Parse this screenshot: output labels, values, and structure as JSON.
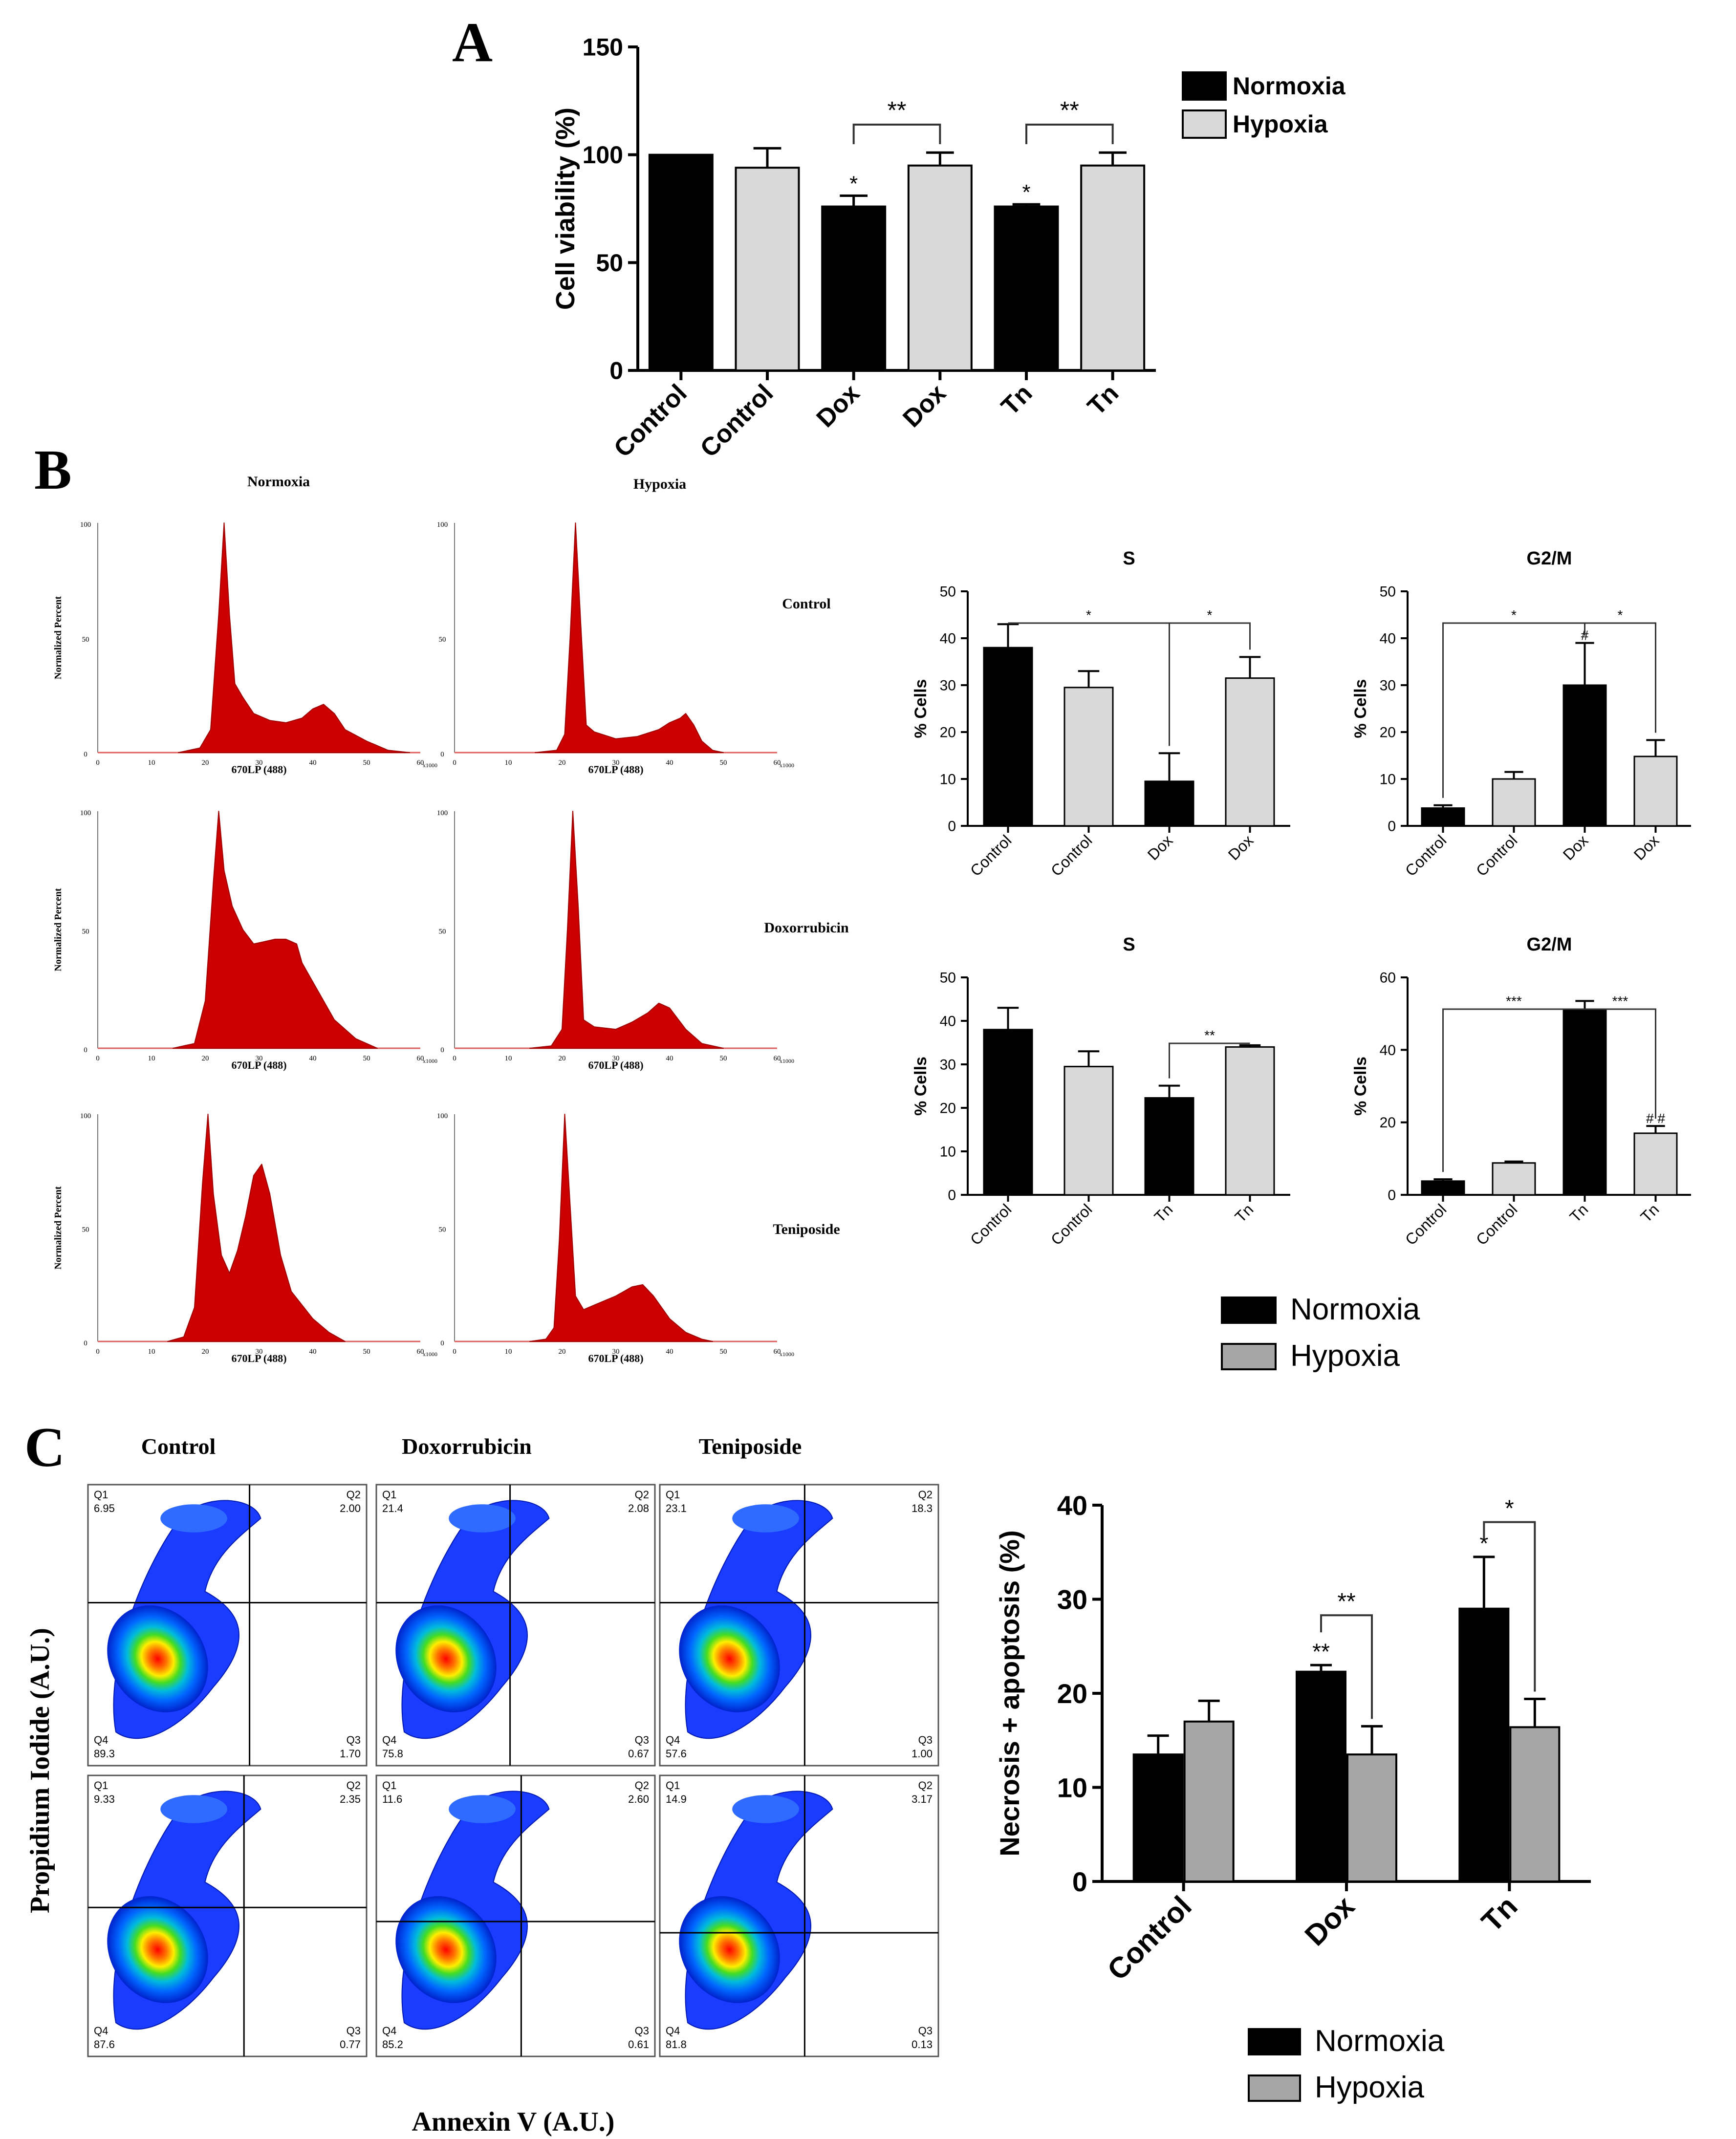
{
  "colors": {
    "normoxia": "#000000",
    "hypoxia_light": "#d9d9d9",
    "hypoxia_grey": "#a6a6a6",
    "histogram": "#cc0000"
  },
  "panelA": {
    "letter": "A",
    "chart_data": {
      "type": "bar",
      "categories": [
        "Control",
        "Control",
        "Dox",
        "Dox",
        "Tn",
        "Tn"
      ],
      "groups": [
        "Normoxia",
        "Hypoxia",
        "Normoxia",
        "Hypoxia",
        "Normoxia",
        "Hypoxia"
      ],
      "values": [
        100,
        94,
        76,
        95,
        76,
        95
      ],
      "errors": [
        0,
        9,
        5,
        6,
        1,
        6
      ],
      "marks": [
        "",
        "",
        "*",
        "",
        "*",
        ""
      ],
      "brackets": [
        {
          "from": 2,
          "to": 3,
          "label": "**"
        },
        {
          "from": 4,
          "to": 5,
          "label": "**"
        }
      ],
      "ylabel": "Cell viability (%)",
      "yticks": [
        0,
        50,
        100,
        150
      ],
      "ylim": [
        0,
        150
      ],
      "legend": [
        "Normoxia",
        "Hypoxia"
      ]
    }
  },
  "panelB": {
    "letter": "B",
    "hist_titles": [
      "Normoxia",
      "Hypoxia"
    ],
    "row_labels": [
      "Control",
      "Doxorrubicin",
      "Teniposide"
    ],
    "hist_xlabel": "670LP (488)",
    "hist_ylabel": "Normalized Percent",
    "hist_xticks": [
      "0",
      "10",
      "20",
      "30",
      "40",
      "50",
      "60"
    ],
    "hist_x_unit": "x1000",
    "hist_yticks": [
      "0",
      "50",
      "100"
    ],
    "charts": [
      {
        "type": "bar",
        "title": "S",
        "categories": [
          "Control",
          "Control",
          "Dox",
          "Dox"
        ],
        "values": [
          38,
          29.5,
          9.5,
          31.5
        ],
        "errors": [
          5,
          3.5,
          6,
          4.5
        ],
        "ylabel": "% Cells",
        "yticks": [
          0,
          10,
          20,
          30,
          40,
          50
        ],
        "ylim": [
          0,
          50
        ],
        "brackets": [
          {
            "from": 0,
            "to": 2,
            "label": "*"
          },
          {
            "from": 2,
            "to": 3,
            "label": "*"
          }
        ],
        "marks": [
          "",
          "",
          "",
          ""
        ]
      },
      {
        "type": "bar",
        "title": "G2/M",
        "categories": [
          "Control",
          "Control",
          "Dox",
          "Dox"
        ],
        "values": [
          3.8,
          10,
          30,
          14.8
        ],
        "errors": [
          0.6,
          1.5,
          9,
          3.5
        ],
        "ylabel": "% Cells",
        "yticks": [
          0,
          10,
          20,
          30,
          40,
          50
        ],
        "ylim": [
          0,
          50
        ],
        "brackets": [
          {
            "from": 0,
            "to": 2,
            "label": "*"
          },
          {
            "from": 2,
            "to": 3,
            "label": "*"
          }
        ],
        "marks": [
          "",
          "",
          "#",
          ""
        ]
      },
      {
        "type": "bar",
        "title": "S",
        "categories": [
          "Control",
          "Control",
          "Tn",
          "Tn"
        ],
        "values": [
          38,
          29.5,
          22.3,
          34
        ],
        "errors": [
          5,
          3.5,
          2.8,
          0.4
        ],
        "ylabel": "% Cells",
        "yticks": [
          0,
          10,
          20,
          30,
          40,
          50
        ],
        "ylim": [
          0,
          50
        ],
        "brackets": [
          {
            "from": 2,
            "to": 3,
            "label": "**"
          }
        ],
        "marks": [
          "",
          "",
          "",
          ""
        ]
      },
      {
        "type": "bar",
        "title": "G2/M",
        "categories": [
          "Control",
          "Control",
          "Tn",
          "Tn"
        ],
        "values": [
          3.8,
          8.8,
          51,
          17
        ],
        "errors": [
          0.5,
          0.4,
          2.5,
          2
        ],
        "ylabel": "% Cells",
        "yticks": [
          0,
          20,
          40,
          60
        ],
        "ylim": [
          0,
          60
        ],
        "brackets": [
          {
            "from": 0,
            "to": 2,
            "label": "***"
          },
          {
            "from": 2,
            "to": 3,
            "label": "***"
          }
        ],
        "marks": [
          "",
          "",
          "",
          "# #"
        ]
      }
    ],
    "legend": [
      "Normoxia",
      "Hypoxia"
    ]
  },
  "panelC": {
    "letter": "C",
    "col_titles": [
      "Control",
      "Doxorrubicin",
      "Teniposide"
    ],
    "ylabel": "Propidium Iodide (A.U.)",
    "xlabel": "Annexin V (A.U.)",
    "quadrants": [
      [
        {
          "Q1": "6.95",
          "Q2": "2.00",
          "Q3": "1.70",
          "Q4": "89.3"
        },
        {
          "Q1": "21.4",
          "Q2": "2.08",
          "Q3": "0.67",
          "Q4": "75.8"
        },
        {
          "Q1": "23.1",
          "Q2": "18.3",
          "Q3": "1.00",
          "Q4": "57.6"
        }
      ],
      [
        {
          "Q1": "9.33",
          "Q2": "2.35",
          "Q3": "0.77",
          "Q4": "87.6"
        },
        {
          "Q1": "11.6",
          "Q2": "2.60",
          "Q3": "0.61",
          "Q4": "85.2"
        },
        {
          "Q1": "14.9",
          "Q2": "3.17",
          "Q3": "0.13",
          "Q4": "81.8"
        }
      ]
    ],
    "chart_data": {
      "type": "bar",
      "categories": [
        "Control",
        "Dox",
        "Tn"
      ],
      "series": [
        {
          "name": "Normoxia",
          "values": [
            13.5,
            22.3,
            29
          ],
          "errors": [
            2,
            0.7,
            5.5
          ]
        },
        {
          "name": "Hypoxia",
          "values": [
            17,
            13.5,
            16.4
          ],
          "errors": [
            2.2,
            3,
            3
          ]
        }
      ],
      "marks": {
        "Normoxia": [
          "",
          "**",
          "*"
        ],
        "Hypoxia": [
          "",
          "",
          ""
        ]
      },
      "brackets": [
        {
          "category": 1,
          "label": "**"
        },
        {
          "category": 2,
          "label": "*"
        }
      ],
      "ylabel": "Necrosis + apoptosis (%)",
      "yticks": [
        0,
        10,
        20,
        30,
        40
      ],
      "ylim": [
        0,
        40
      ],
      "legend": [
        "Normoxia",
        "Hypoxia"
      ]
    }
  }
}
